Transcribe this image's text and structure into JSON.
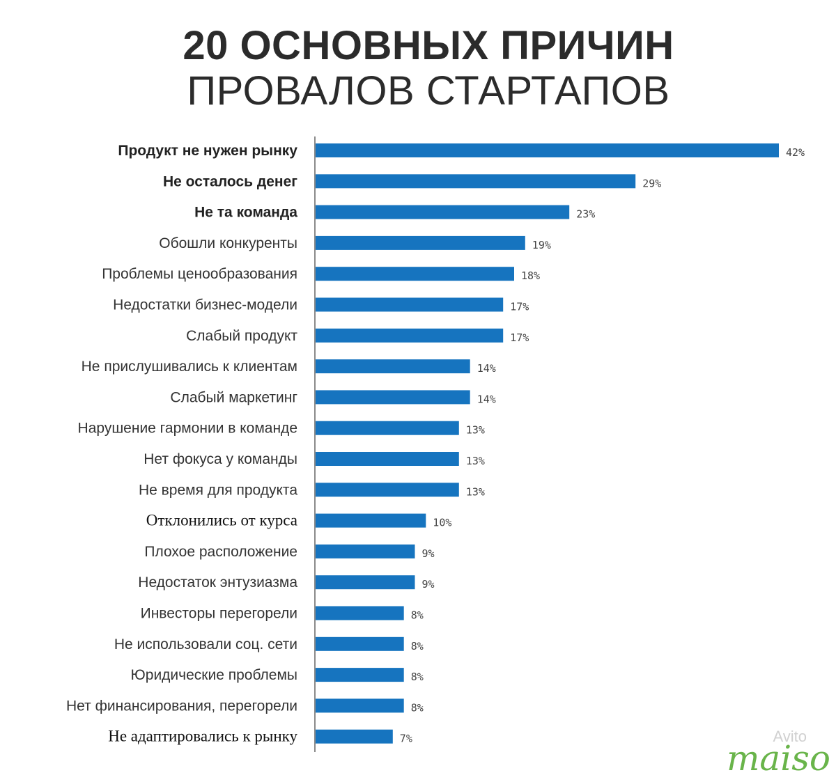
{
  "title": {
    "line1": "20 ОСНОВНЫХ ПРИЧИН",
    "line2": "ПРОВАЛОВ СТАРТАПОВ"
  },
  "chart_data": {
    "type": "bar",
    "orientation": "horizontal",
    "categories": [
      "Продукт не нужен рынку",
      "Не осталось денег",
      "Не та команда",
      "Обошли конкуренты",
      "Проблемы ценообразования",
      "Недостатки бизнес-модели",
      "Слабый продукт",
      "Не прислушивались к клиентам",
      "Слабый маркетинг",
      "Нарушение гармонии в команде",
      "Нет фокуса у команды",
      "Не время для продукта",
      "Отклонились от курса",
      "Плохое расположение",
      "Недостаток энтузиазма",
      "Инвесторы перегорели",
      "Не использовали соц. сети",
      "Юридические проблемы",
      "Нет финансирования, перегорели",
      "Не адаптировались к рынку"
    ],
    "values": [
      42,
      29,
      23,
      19,
      18,
      17,
      17,
      14,
      14,
      13,
      13,
      13,
      10,
      9,
      9,
      8,
      8,
      8,
      8,
      7
    ],
    "value_labels": [
      "42%",
      "29%",
      "23%",
      "19%",
      "18%",
      "17%",
      "17%",
      "14%",
      "14%",
      "13%",
      "13%",
      "13%",
      "10%",
      "9%",
      "9%",
      "8%",
      "8%",
      "8%",
      "8%",
      "7%"
    ],
    "bar_color": "#1674bf",
    "xlim": [
      0,
      42
    ],
    "grid": false,
    "legend": "none"
  },
  "watermark": {
    "brand": "maiso",
    "secondary": "Avito"
  }
}
